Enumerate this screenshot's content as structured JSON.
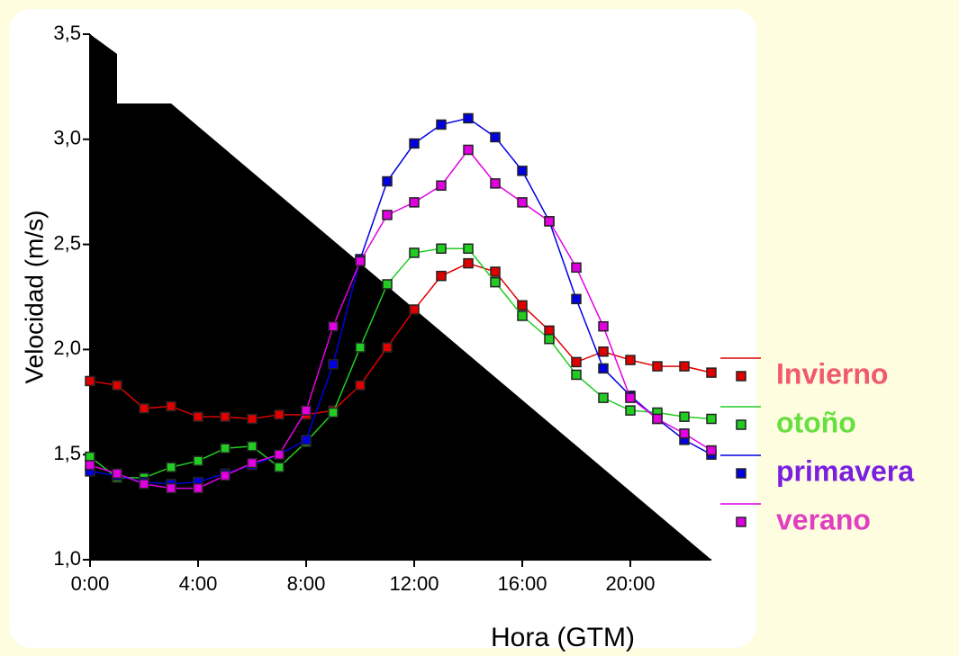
{
  "chart_data": {
    "type": "line",
    "x_label": "Hora (GTM)",
    "y_label": "Velocidad (m/s)",
    "x": [
      0,
      1,
      2,
      3,
      4,
      5,
      6,
      7,
      8,
      9,
      10,
      11,
      12,
      13,
      14,
      15,
      16,
      17,
      18,
      19,
      20,
      21,
      22,
      23
    ],
    "xlim": [
      0,
      23
    ],
    "xticks": [
      {
        "value": 0,
        "label": "0:00"
      },
      {
        "value": 4,
        "label": "4:00"
      },
      {
        "value": 8,
        "label": "8:00"
      },
      {
        "value": 12,
        "label": "12:00"
      },
      {
        "value": 16,
        "label": "16:00"
      },
      {
        "value": 20,
        "label": "20:00"
      }
    ],
    "ylim": [
      1.0,
      3.5
    ],
    "yticks": [
      {
        "value": 1.0,
        "label": "1,0"
      },
      {
        "value": 1.5,
        "label": "1,5"
      },
      {
        "value": 2.0,
        "label": "2,0"
      },
      {
        "value": 2.5,
        "label": "2,5"
      },
      {
        "value": 3.0,
        "label": "3,0"
      },
      {
        "value": 3.5,
        "label": "3,5"
      }
    ],
    "series": [
      {
        "name": "Invierno",
        "color": "#e00000",
        "label_color": "#f05a6e",
        "values": [
          1.85,
          1.83,
          1.72,
          1.73,
          1.68,
          1.68,
          1.67,
          1.69,
          1.69,
          1.71,
          1.83,
          2.01,
          2.19,
          2.35,
          2.41,
          2.37,
          2.21,
          2.09,
          1.94,
          1.99,
          1.95,
          1.92,
          1.92,
          1.89
        ]
      },
      {
        "name": "otoño",
        "color": "#22cc22",
        "label_color": "#66e040",
        "values": [
          1.49,
          1.39,
          1.39,
          1.44,
          1.47,
          1.53,
          1.54,
          1.44,
          1.56,
          1.7,
          2.01,
          2.31,
          2.46,
          2.48,
          2.48,
          2.32,
          2.16,
          2.05,
          1.88,
          1.77,
          1.71,
          1.7,
          1.68,
          1.67
        ]
      },
      {
        "name": "primavera",
        "color": "#0000e0",
        "label_color": "#7a1fe0",
        "values": [
          1.42,
          1.4,
          1.37,
          1.36,
          1.37,
          1.41,
          1.45,
          1.5,
          1.57,
          1.93,
          2.43,
          2.8,
          2.98,
          3.07,
          3.1,
          3.01,
          2.85,
          2.61,
          2.24,
          1.91,
          1.78,
          1.67,
          1.57,
          1.5
        ]
      },
      {
        "name": "verano",
        "color": "#e000e0",
        "label_color": "#e040c0",
        "values": [
          1.45,
          1.41,
          1.36,
          1.34,
          1.34,
          1.4,
          1.46,
          1.5,
          1.71,
          2.11,
          2.42,
          2.64,
          2.7,
          2.78,
          2.95,
          2.79,
          2.7,
          2.61,
          2.39,
          2.11,
          1.77,
          1.67,
          1.6,
          1.52
        ]
      }
    ]
  }
}
